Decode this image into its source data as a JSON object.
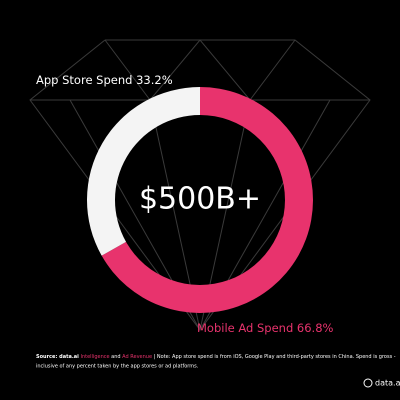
{
  "chart_data": {
    "type": "donut",
    "categories": [
      "Mobile Ad Spend",
      "App Store Spend"
    ],
    "values": [
      66.8,
      33.2
    ],
    "value_labels": [
      "66.8%",
      "33.2%"
    ],
    "colors": [
      "#e8336d",
      "#f4f4f4"
    ],
    "label_colors": [
      "#e8336d",
      "#ffffff"
    ],
    "center_label": "$500B+"
  },
  "footer": {
    "source": "Source: data.ai",
    "link1": "Intelligence",
    "and": "and",
    "link2": "Ad Revenue",
    "note_line1": "| Note: App store spend is from iOS, Google Play and third-party stores in China. Spend is gross -",
    "note_line2": "inclusive of any percent taken by the app stores or ad platforms.",
    "logo": "data.ai"
  }
}
